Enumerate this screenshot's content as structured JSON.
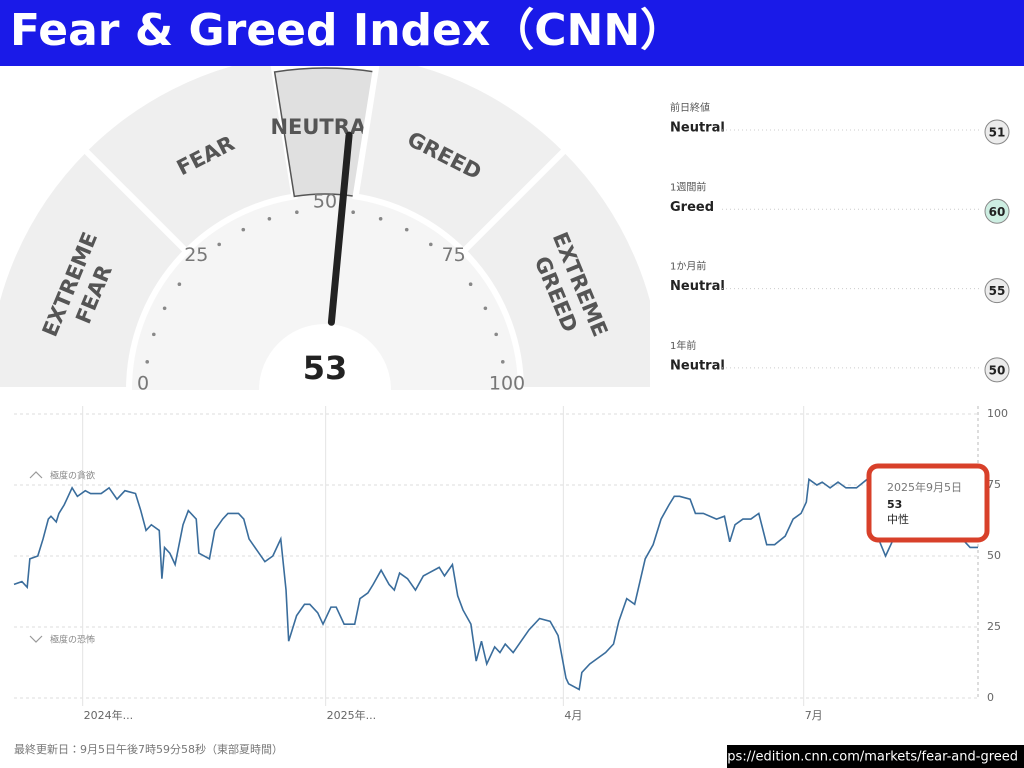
{
  "title": "Fear & Greed Index（CNN）",
  "chart_data": [
    {
      "type": "gauge",
      "value": 53,
      "bands": [
        0,
        25,
        45,
        55,
        75,
        100
      ],
      "band_labels": [
        [
          "EXTREME",
          "FEAR"
        ],
        [
          "FEAR"
        ],
        [
          "NEUTRAL"
        ],
        [
          "GREED"
        ],
        [
          "EXTREME",
          "GREED"
        ]
      ],
      "ticks": [
        0,
        25,
        50,
        75,
        100
      ]
    },
    {
      "type": "line",
      "color": "#3a6d9c",
      "x": [
        0,
        3,
        5,
        6,
        9,
        11,
        13,
        14,
        16,
        17,
        19,
        20,
        22,
        24,
        27,
        29,
        33,
        36,
        39,
        42,
        46,
        48,
        50,
        52,
        55,
        56,
        57,
        59,
        61,
        64,
        66,
        69,
        70,
        74,
        76,
        79,
        81,
        85,
        87,
        89,
        92,
        95,
        98,
        100,
        101,
        103,
        104,
        107,
        110,
        112,
        115,
        117,
        120,
        122,
        125,
        129,
        131,
        134,
        136,
        139,
        142,
        144,
        146,
        149,
        152,
        155,
        157,
        161,
        163,
        166,
        168,
        170,
        173,
        175,
        177,
        179,
        182,
        184,
        186,
        189,
        192,
        195,
        199,
        203,
        206,
        209,
        210,
        214,
        215,
        218,
        221,
        224,
        227,
        229,
        232,
        235,
        237,
        239,
        242,
        245,
        248,
        250,
        252,
        256,
        258,
        261,
        266,
        269,
        271,
        273,
        276,
        279,
        282,
        285,
        288,
        292,
        295,
        298,
        300,
        301,
        304,
        306,
        309,
        312,
        315,
        319,
        323,
        324,
        326,
        330,
        333,
        339,
        347,
        353,
        358,
        362,
        365
      ],
      "values": [
        40,
        41,
        39,
        49,
        50,
        56,
        63,
        64,
        62,
        65,
        68,
        70,
        74,
        71,
        73,
        72,
        72,
        74,
        70,
        73,
        72,
        66,
        59,
        61,
        59,
        42,
        53,
        51,
        47,
        61,
        66,
        63,
        51,
        49,
        59,
        63,
        65,
        65,
        63,
        56,
        52,
        48,
        50,
        54,
        56,
        38,
        20,
        29,
        33,
        33,
        30,
        26,
        32,
        32,
        26,
        26,
        35,
        37,
        40,
        45,
        40,
        38,
        44,
        42,
        38,
        43,
        44,
        46,
        43,
        47,
        36,
        31,
        26,
        13,
        20,
        12,
        18,
        16,
        19,
        16,
        20,
        24,
        28,
        27,
        22,
        7,
        5,
        3,
        9,
        12,
        14,
        16,
        19,
        27,
        35,
        33,
        41,
        49,
        54,
        63,
        68,
        71,
        71,
        70,
        65,
        65,
        63,
        64,
        55,
        61,
        63,
        63,
        65,
        54,
        54,
        57,
        63,
        65,
        69,
        77,
        75,
        76,
        74,
        76,
        74,
        74,
        77,
        73,
        59,
        50,
        56,
        56,
        57,
        56,
        57,
        53,
        53
      ],
      "xlim": [
        0,
        365
      ],
      "xticks": [
        {
          "value": 26,
          "label": "2024年..."
        },
        {
          "value": 118,
          "label": "2025年..."
        },
        {
          "value": 208,
          "label": "4月"
        },
        {
          "value": 299,
          "label": "7月"
        }
      ],
      "ylim": [
        0,
        100
      ],
      "yticks": [
        0,
        25,
        50,
        75,
        100
      ],
      "annotations": [
        "極度の貪欲",
        "極度の恐怖"
      ],
      "tooltip": {
        "date": "2025年9月5日",
        "value": 53,
        "rating": "中性"
      }
    }
  ],
  "history": [
    {
      "label": "前日終値",
      "rating": "Neutral",
      "value": 51,
      "color": "#ececec"
    },
    {
      "label": "1週間前",
      "rating": "Greed",
      "value": 60,
      "color": "#cdeee2"
    },
    {
      "label": "1か月前",
      "rating": "Neutral",
      "value": 55,
      "color": "#ececec"
    },
    {
      "label": "1年前",
      "rating": "Neutral",
      "value": 50,
      "color": "#ececec"
    }
  ],
  "footer": "最終更新日：9月5日午後7時59分58秒（東部夏時間）",
  "source_url": "https://edition.cnn.com/markets/fear-and-greed"
}
